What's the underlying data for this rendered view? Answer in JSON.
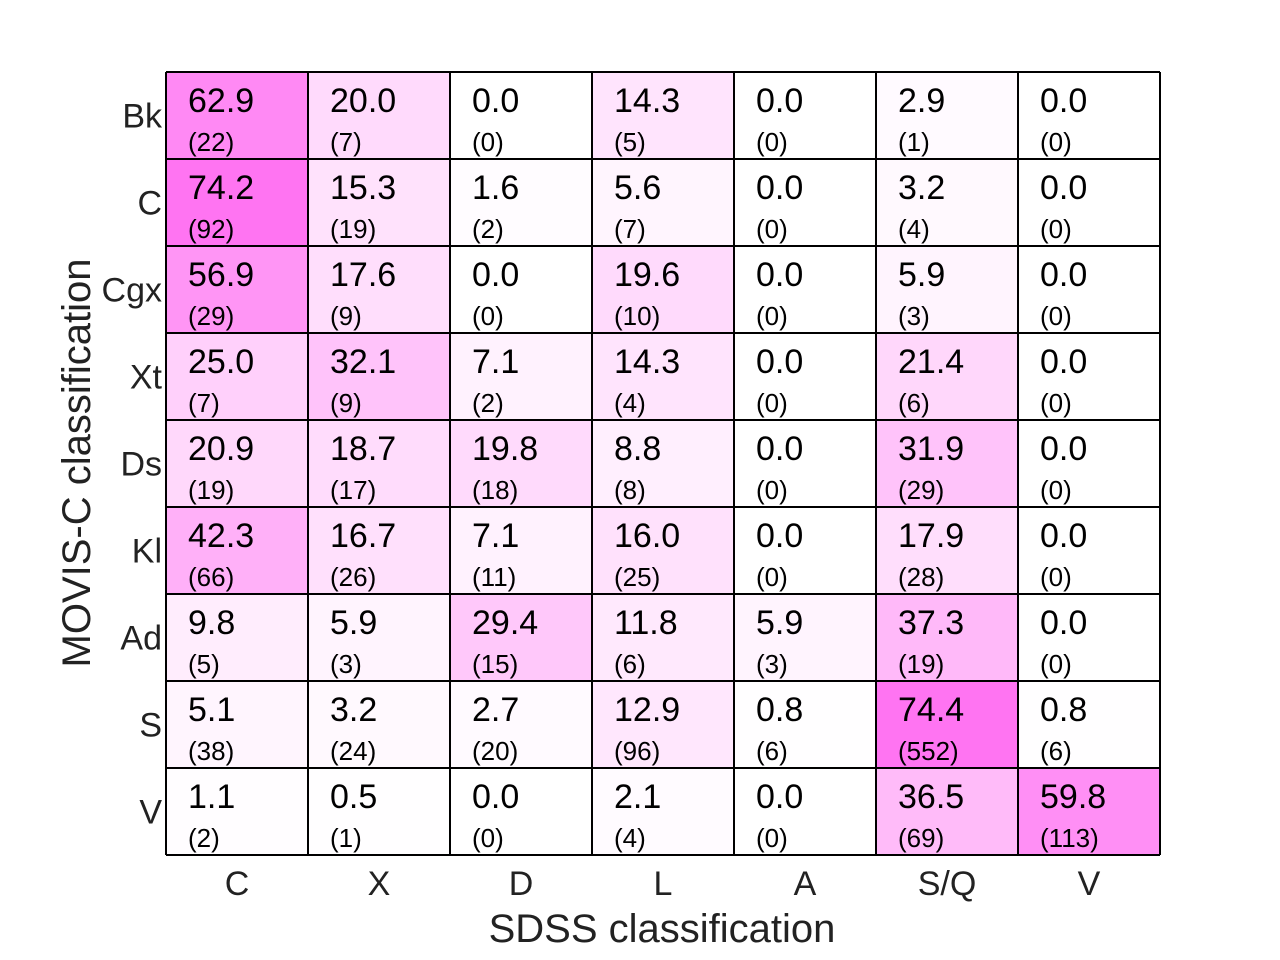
{
  "chart_data": {
    "type": "heatmap",
    "xlabel": "SDSS classification",
    "ylabel": "MOVIS-C classification",
    "x_categories": [
      "C",
      "X",
      "D",
      "L",
      "A",
      "S/Q",
      "V"
    ],
    "y_categories": [
      "Bk",
      "C",
      "Cgx",
      "Xt",
      "Ds",
      "Kl",
      "Ad",
      "S",
      "V"
    ],
    "color_scale": {
      "low": "#ffffff",
      "high": "#ff44ee"
    },
    "percent": [
      [
        62.9,
        20.0,
        0.0,
        14.3,
        0.0,
        2.9,
        0.0
      ],
      [
        74.2,
        15.3,
        1.6,
        5.6,
        0.0,
        3.2,
        0.0
      ],
      [
        56.9,
        17.6,
        0.0,
        19.6,
        0.0,
        5.9,
        0.0
      ],
      [
        25.0,
        32.1,
        7.1,
        14.3,
        0.0,
        21.4,
        0.0
      ],
      [
        20.9,
        18.7,
        19.8,
        8.8,
        0.0,
        31.9,
        0.0
      ],
      [
        42.3,
        16.7,
        7.1,
        16.0,
        0.0,
        17.9,
        0.0
      ],
      [
        9.8,
        5.9,
        29.4,
        11.8,
        5.9,
        37.3,
        0.0
      ],
      [
        5.1,
        3.2,
        2.7,
        12.9,
        0.8,
        74.4,
        0.8
      ],
      [
        1.1,
        0.5,
        0.0,
        2.1,
        0.0,
        36.5,
        59.8
      ]
    ],
    "counts": [
      [
        22,
        7,
        0,
        5,
        0,
        1,
        0
      ],
      [
        92,
        19,
        2,
        7,
        0,
        4,
        0
      ],
      [
        29,
        9,
        0,
        10,
        0,
        3,
        0
      ],
      [
        7,
        9,
        2,
        4,
        0,
        6,
        0
      ],
      [
        19,
        17,
        18,
        8,
        0,
        29,
        0
      ],
      [
        66,
        26,
        11,
        25,
        0,
        28,
        0
      ],
      [
        5,
        3,
        15,
        6,
        3,
        19,
        0
      ],
      [
        38,
        24,
        20,
        96,
        6,
        552,
        6
      ],
      [
        2,
        1,
        0,
        4,
        0,
        69,
        113
      ]
    ]
  }
}
